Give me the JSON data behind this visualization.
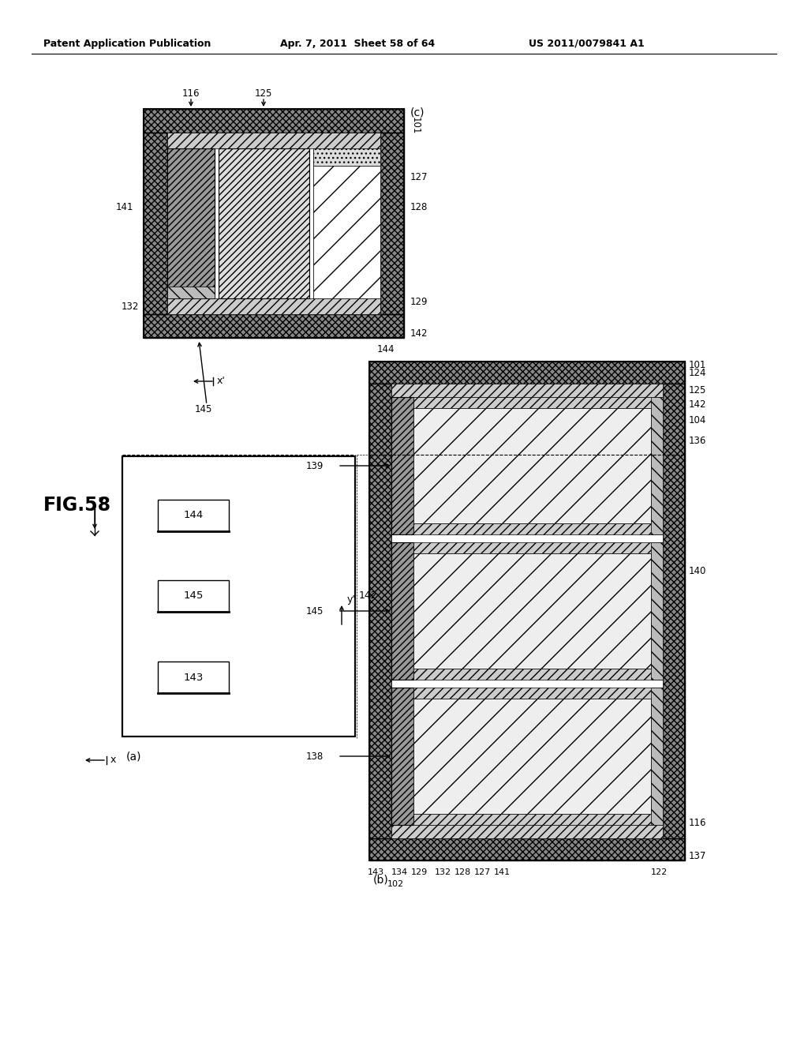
{
  "header_left": "Patent Application Publication",
  "header_mid": "Apr. 7, 2011  Sheet 58 of 64",
  "header_right": "US 2011/0079841 A1",
  "fig_label": "FIG.58",
  "bg_color": "#ffffff"
}
